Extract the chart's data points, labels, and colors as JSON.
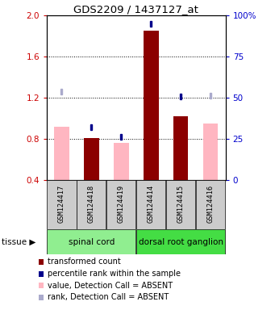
{
  "title": "GDS2209 / 1437127_at",
  "samples": [
    "GSM124417",
    "GSM124418",
    "GSM124419",
    "GSM124414",
    "GSM124415",
    "GSM124416"
  ],
  "bar_values_absent": [
    0.92,
    null,
    0.76,
    null,
    null,
    0.95
  ],
  "bar_values_present": [
    null,
    0.81,
    null,
    1.85,
    1.02,
    null
  ],
  "rank_absent": [
    1.26,
    null,
    null,
    null,
    null,
    1.22
  ],
  "rank_present": [
    null,
    0.91,
    0.82,
    1.92,
    1.21,
    null
  ],
  "tissues": [
    {
      "label": "spinal cord",
      "cols": [
        0,
        1,
        2
      ],
      "color": "#90EE90"
    },
    {
      "label": "dorsal root ganglion",
      "cols": [
        3,
        4,
        5
      ],
      "color": "#44DD44"
    }
  ],
  "ylim": [
    0.4,
    2.0
  ],
  "yticks_left": [
    0.4,
    0.8,
    1.2,
    1.6,
    2.0
  ],
  "right_positions": [
    0.4,
    0.8,
    1.2,
    1.6,
    2.0
  ],
  "right_labels": [
    "0",
    "25",
    "50",
    "75",
    "100%"
  ],
  "hgrid_lines": [
    0.8,
    1.2,
    1.6
  ],
  "color_bar_present": "#8B0000",
  "color_bar_absent": "#FFB6C1",
  "color_rank_present": "#00008B",
  "color_rank_absent": "#AAAACC",
  "ylabel_left_color": "#CC0000",
  "ylabel_right_color": "#0000CC",
  "background_color": "#ffffff",
  "sample_box_color": "#CCCCCC",
  "figsize": [
    3.41,
    3.84
  ],
  "dpi": 100
}
